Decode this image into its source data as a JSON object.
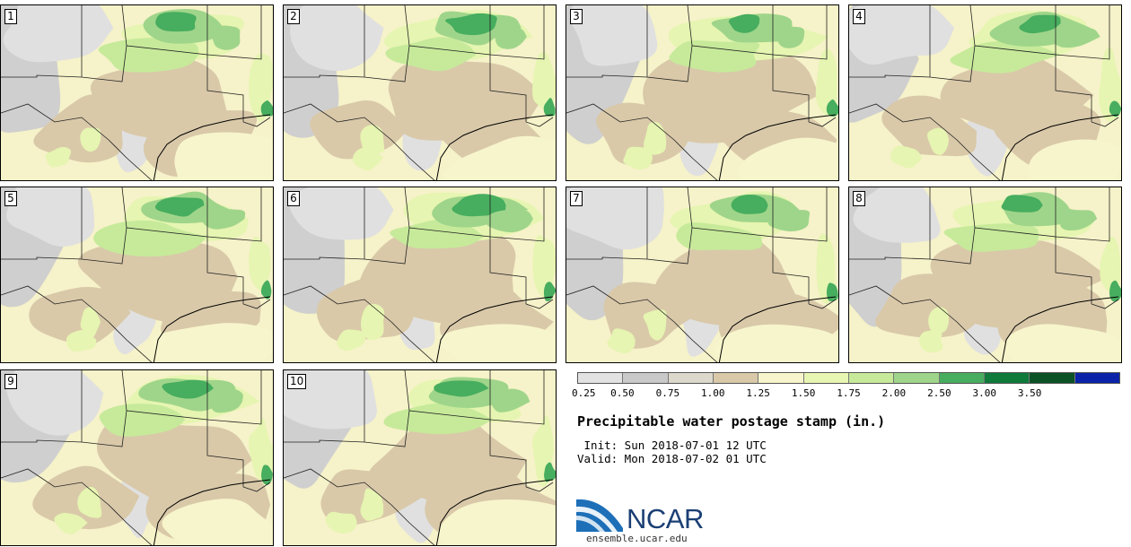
{
  "title": "Precipitable water postage stamp (in.)",
  "init": " Init: Sun 2018-07-01 12 UTC",
  "valid": "Valid: Mon 2018-07-02 01 UTC",
  "logo": {
    "name": "NCAR",
    "url": "ensemble.ucar.edu"
  },
  "members": [
    "1",
    "2",
    "3",
    "4",
    "5",
    "6",
    "7",
    "8",
    "9",
    "10"
  ],
  "colorbar": {
    "ticks": [
      "0.25",
      "0.50",
      "0.75",
      "1.00",
      "1.25",
      "1.50",
      "1.75",
      "2.00",
      "2.50",
      "3.00",
      "3.50"
    ],
    "colors": [
      "#e2e2e2",
      "#c9c9c9",
      "#dcd8cc",
      "#d9c9a9",
      "#f7f5cb",
      "#e8f6b3",
      "#c6ea9a",
      "#9fd58a",
      "#47ad5f",
      "#0f7a3a",
      "#0b5226",
      "#0a23a8"
    ]
  },
  "legend_colors": {
    "gray_light": "#e0e0e0",
    "gray_mid": "#cfcfcf",
    "tan": "#d9c9a9",
    "cream": "#f7f5cb",
    "yellow_green": "#e6f5b1",
    "light_green": "#c6ea9a",
    "green": "#9fd58a",
    "dark_green": "#47ad5f"
  }
}
